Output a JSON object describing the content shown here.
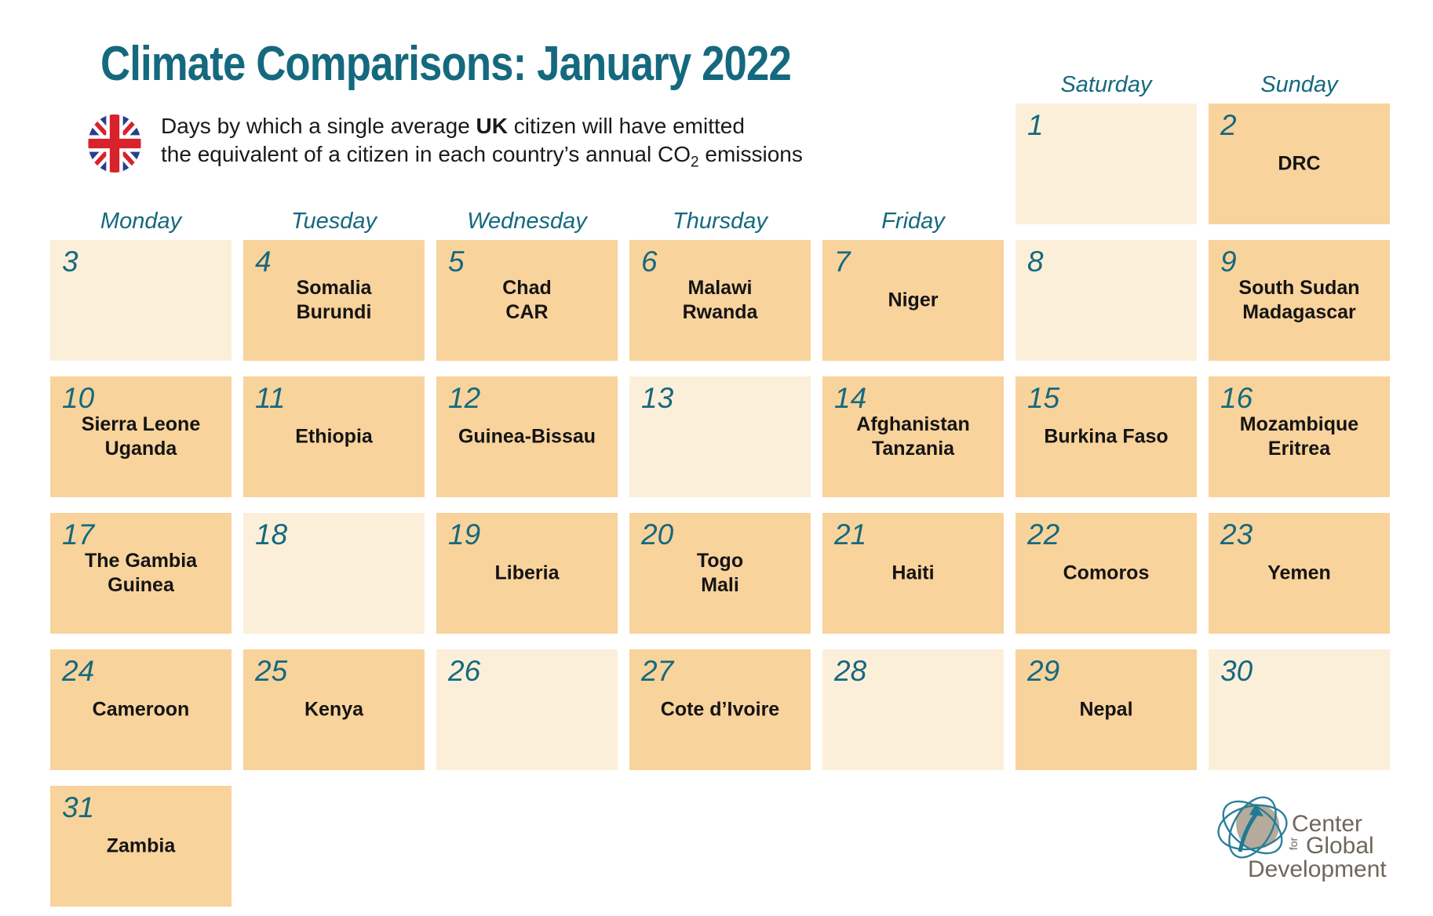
{
  "header": {
    "title": "Climate Comparisons: January 2022",
    "subtitle": {
      "l1a": "Days by which a single average ",
      "l1b": "UK",
      "l1c": " citizen will have emitted",
      "l2a": "the equivalent of a citizen in each country’s annual CO",
      "l2sub": "2",
      "l2c": " emissions"
    },
    "flag_icon": "uk-flag-icon"
  },
  "chart_data": {
    "type": "table",
    "title": "Climate Comparisons: January 2022",
    "description": "Days by which a single average UK citizen will have emitted the equivalent of a citizen in each country’s annual CO2 emissions",
    "month": "January 2022",
    "first_day_weekday": "Saturday",
    "weekday_columns": [
      "Monday",
      "Tuesday",
      "Wednesday",
      "Thursday",
      "Friday",
      "Saturday",
      "Sunday"
    ],
    "days": [
      {
        "day": 1,
        "countries": []
      },
      {
        "day": 2,
        "countries": [
          "DRC"
        ]
      },
      {
        "day": 3,
        "countries": []
      },
      {
        "day": 4,
        "countries": [
          "Somalia",
          "Burundi"
        ]
      },
      {
        "day": 5,
        "countries": [
          "Chad",
          "CAR"
        ]
      },
      {
        "day": 6,
        "countries": [
          "Malawi",
          "Rwanda"
        ]
      },
      {
        "day": 7,
        "countries": [
          "Niger"
        ]
      },
      {
        "day": 8,
        "countries": []
      },
      {
        "day": 9,
        "countries": [
          "South Sudan",
          "Madagascar"
        ]
      },
      {
        "day": 10,
        "countries": [
          "Sierra Leone",
          "Uganda"
        ]
      },
      {
        "day": 11,
        "countries": [
          "Ethiopia"
        ]
      },
      {
        "day": 12,
        "countries": [
          "Guinea-Bissau"
        ]
      },
      {
        "day": 13,
        "countries": []
      },
      {
        "day": 14,
        "countries": [
          "Afghanistan",
          "Tanzania"
        ]
      },
      {
        "day": 15,
        "countries": [
          "Burkina Faso"
        ]
      },
      {
        "day": 16,
        "countries": [
          "Mozambique",
          "Eritrea"
        ]
      },
      {
        "day": 17,
        "countries": [
          "The Gambia",
          "Guinea"
        ]
      },
      {
        "day": 18,
        "countries": []
      },
      {
        "day": 19,
        "countries": [
          "Liberia"
        ]
      },
      {
        "day": 20,
        "countries": [
          "Togo",
          "Mali"
        ]
      },
      {
        "day": 21,
        "countries": [
          "Haiti"
        ]
      },
      {
        "day": 22,
        "countries": [
          "Comoros"
        ]
      },
      {
        "day": 23,
        "countries": [
          "Yemen"
        ]
      },
      {
        "day": 24,
        "countries": [
          "Cameroon"
        ]
      },
      {
        "day": 25,
        "countries": [
          "Kenya"
        ]
      },
      {
        "day": 26,
        "countries": []
      },
      {
        "day": 27,
        "countries": [
          "Cote d’Ivoire"
        ]
      },
      {
        "day": 28,
        "countries": []
      },
      {
        "day": 29,
        "countries": [
          "Nepal"
        ]
      },
      {
        "day": 30,
        "countries": []
      },
      {
        "day": 31,
        "countries": [
          "Zambia"
        ]
      }
    ]
  },
  "logo": {
    "line1": "Center",
    "line2": "for",
    "line3": "Global",
    "line4": "Development"
  },
  "colors": {
    "teal": "#15697E",
    "orange": "#F9D39C",
    "cream": "#FCEFD9",
    "ink": "#141414",
    "logo-gray": "#6E675C",
    "logo-teal": "#2A7E97",
    "logo-taupe": "#B5AA9B",
    "flag-blue": "#2B3F87",
    "flag-red": "#D8222C"
  }
}
